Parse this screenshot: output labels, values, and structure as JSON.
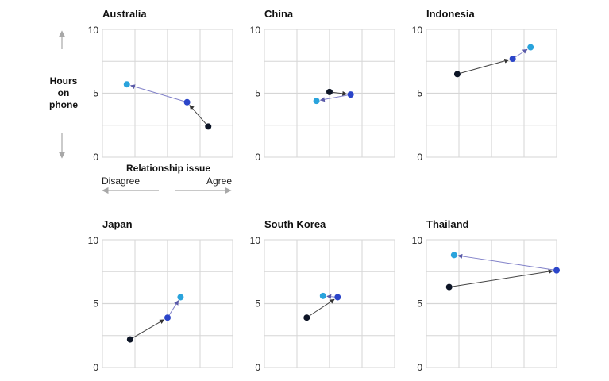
{
  "y_axis_label": [
    "Hours",
    "on",
    "phone"
  ],
  "x_axis_label": "Relationship issue",
  "x_axis_ends": {
    "low": "Disagree",
    "high": "Agree"
  },
  "colors": {
    "point_1": "#0d1526",
    "point_2": "#2b45c9",
    "point_3": "#29a3dc",
    "arrow_1": "#444444",
    "arrow_2": "#8080c8",
    "grid": "#d6d6d6",
    "axis_arrow": "#a8a8a8"
  },
  "chart_data": {
    "type": "scatter",
    "description_of_marks": "three connected points per panel, arrows from point 1 to point 2 to point 3",
    "xlim": [
      0,
      4
    ],
    "ylim": [
      0,
      10
    ],
    "y_ticks": [
      "10",
      "5",
      "0"
    ],
    "grid": true,
    "panels": [
      {
        "title": "Australia",
        "points": [
          {
            "x": 3.25,
            "y": 2.4
          },
          {
            "x": 2.6,
            "y": 4.3
          },
          {
            "x": 0.75,
            "y": 5.7
          }
        ]
      },
      {
        "title": "China",
        "points": [
          {
            "x": 2.0,
            "y": 5.1
          },
          {
            "x": 2.65,
            "y": 4.9
          },
          {
            "x": 1.6,
            "y": 4.4
          }
        ]
      },
      {
        "title": "Indonesia",
        "points": [
          {
            "x": 0.95,
            "y": 6.5
          },
          {
            "x": 2.65,
            "y": 7.7
          },
          {
            "x": 3.2,
            "y": 8.6
          }
        ]
      },
      {
        "title": "Japan",
        "points": [
          {
            "x": 0.85,
            "y": 2.2
          },
          {
            "x": 2.0,
            "y": 3.9
          },
          {
            "x": 2.4,
            "y": 5.5
          }
        ]
      },
      {
        "title": "South Korea",
        "points": [
          {
            "x": 1.3,
            "y": 3.9
          },
          {
            "x": 2.25,
            "y": 5.5
          },
          {
            "x": 1.8,
            "y": 5.6
          }
        ]
      },
      {
        "title": "Thailand",
        "points": [
          {
            "x": 0.7,
            "y": 6.3
          },
          {
            "x": 4.0,
            "y": 7.6
          },
          {
            "x": 0.85,
            "y": 8.8
          }
        ]
      }
    ]
  }
}
